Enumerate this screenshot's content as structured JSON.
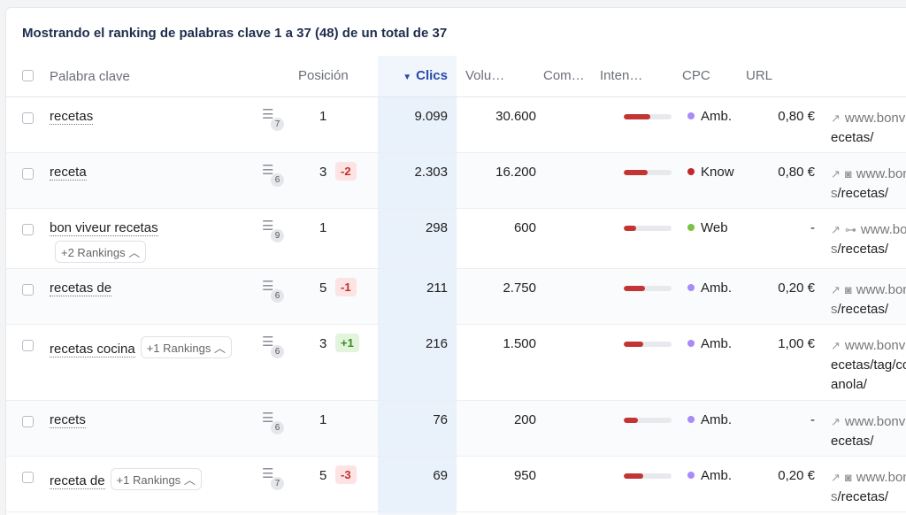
{
  "caption": "Mostrando el ranking de palabras clave 1 a 37 (48) de un total de 37",
  "columns": {
    "keyword": "Palabra clave",
    "position": "Posición",
    "clicks": "Clics",
    "volume": "Volu…",
    "competition": "Com…",
    "intent": "Inten…",
    "cpc": "CPC",
    "url": "URL"
  },
  "sort_icon": "sort-down-icon",
  "colors": {
    "accent": "#2a4aa8",
    "competition_bar": "#c33434",
    "intent_ambiguous": "#a78bfa",
    "intent_know": "#c0282d",
    "intent_web": "#7cc243"
  },
  "rows": [
    {
      "keyword": "recetas",
      "rankings": "",
      "serp_count": "7",
      "position": "1",
      "change": "",
      "clicks": "9.099",
      "volume": "30.600",
      "competition": 0.55,
      "intent": "Amb.",
      "cpc": "0,80 €",
      "url_domain": "www.bonviveur.es",
      "url_path": "/recetas/",
      "url_icons": [
        "external-link-icon"
      ]
    },
    {
      "keyword": "receta",
      "rankings": "",
      "serp_count": "6",
      "position": "3",
      "change": "-2",
      "clicks": "2.303",
      "volume": "16.200",
      "competition": 0.5,
      "intent": "Know",
      "cpc": "0,80 €",
      "url_domain": "www.bonviveur.es",
      "url_path": "/recetas/",
      "url_icons": [
        "external-link-icon",
        "camera-icon"
      ]
    },
    {
      "keyword": "bon viveur recetas",
      "rankings": "+2 Rankings",
      "serp_count": "9",
      "position": "1",
      "change": "",
      "clicks": "298",
      "volume": "600",
      "competition": 0.25,
      "intent": "Web",
      "cpc": "-",
      "url_domain": "www.bonviveur.es",
      "url_path": "/recetas/",
      "url_icons": [
        "external-link-icon",
        "sitemap-icon"
      ]
    },
    {
      "keyword": "recetas de",
      "rankings": "",
      "serp_count": "6",
      "position": "5",
      "change": "-1",
      "clicks": "211",
      "volume": "2.750",
      "competition": 0.45,
      "intent": "Amb.",
      "cpc": "0,20 €",
      "url_domain": "www.bonviveur.es",
      "url_path": "/recetas/",
      "url_icons": [
        "external-link-icon",
        "camera-icon"
      ]
    },
    {
      "keyword": "recetas cocina",
      "rankings": "+1 Rankings",
      "serp_count": "6",
      "position": "3",
      "change": "+1",
      "clicks": "216",
      "volume": "1.500",
      "competition": 0.4,
      "intent": "Amb.",
      "cpc": "1,00 €",
      "url_domain": "www.bonviveur.es",
      "url_path": "/recetas/tag/cocina-espanola/",
      "url_icons": [
        "external-link-icon"
      ]
    },
    {
      "keyword": "recets",
      "rankings": "",
      "serp_count": "6",
      "position": "1",
      "change": "",
      "clicks": "76",
      "volume": "200",
      "competition": 0.3,
      "intent": "Amb.",
      "cpc": "-",
      "url_domain": "www.bonviveur.es",
      "url_path": "/recetas/",
      "url_icons": [
        "external-link-icon"
      ]
    },
    {
      "keyword": "receta de",
      "rankings": "+1 Rankings",
      "serp_count": "7",
      "position": "5",
      "change": "-3",
      "clicks": "69",
      "volume": "950",
      "competition": 0.4,
      "intent": "Amb.",
      "cpc": "0,20 €",
      "url_domain": "www.bonviveur.es",
      "url_path": "/recetas/",
      "url_icons": [
        "external-link-icon",
        "camera-icon"
      ]
    }
  ]
}
